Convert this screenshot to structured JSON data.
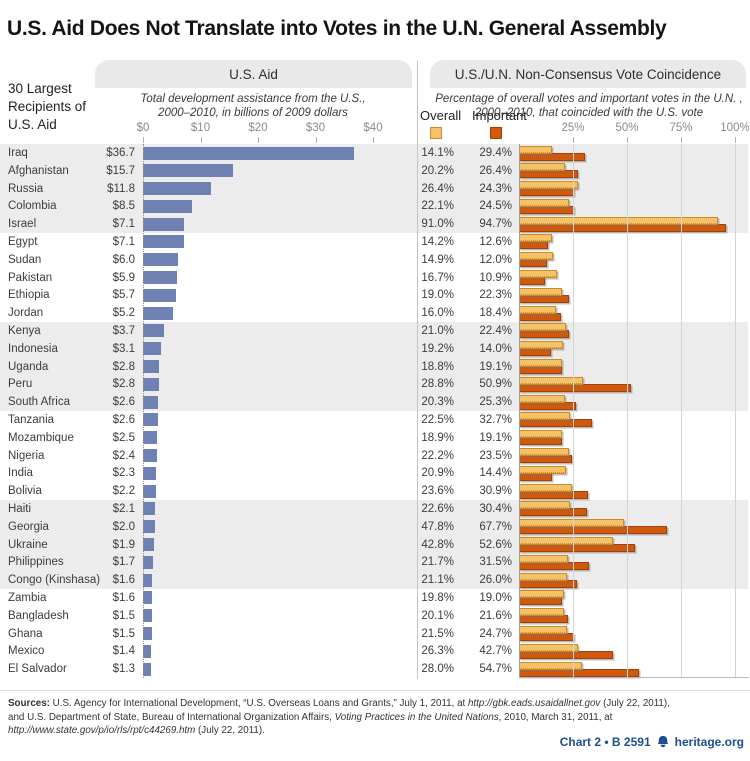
{
  "title": "U.S. Aid Does Not Translate into Votes in the U.N. General Assembly",
  "row_header": "30 Largest Recipients of U.S. Aid",
  "panels": {
    "aid": {
      "tab": "U.S. Aid",
      "subtitle": "Total development assistance from the U.S., 2000–2010, in billions of 2009 dollars"
    },
    "votes": {
      "tab": "U.S./U.N. Non-Consensus Vote Coincidence",
      "subtitle": "Percentage of overall votes and important votes in the U.N. , 2000–2010, that coincided with the U.S. vote"
    }
  },
  "legend": {
    "overall_label": "Overall",
    "important_label": "Important"
  },
  "chart_data": [
    {
      "type": "bar",
      "title": "U.S. Aid",
      "subtitle": "Total development assistance from the U.S., 2000–2010, in billions of 2009 dollars",
      "orientation": "horizontal",
      "unit": "billions of 2009 USD",
      "xlim": [
        0,
        40
      ],
      "grid": false,
      "x_ticks": [
        {
          "label": "$0",
          "value": 0
        },
        {
          "label": "$10",
          "value": 10
        },
        {
          "label": "$20",
          "value": 20
        },
        {
          "label": "$30",
          "value": 30
        },
        {
          "label": "$40",
          "value": 40
        }
      ],
      "categories": [
        "Iraq",
        "Afghanistan",
        "Russia",
        "Colombia",
        "Israel",
        "Egypt",
        "Sudan",
        "Pakistan",
        "Ethiopia",
        "Jordan",
        "Kenya",
        "Indonesia",
        "Uganda",
        "Peru",
        "South Africa",
        "Tanzania",
        "Mozambique",
        "Nigeria",
        "India",
        "Bolivia",
        "Haiti",
        "Georgia",
        "Ukraine",
        "Philippines",
        "Congo (Kinshasa)",
        "Zambia",
        "Bangladesh",
        "Ghana",
        "Mexico",
        "El Salvador"
      ],
      "values": [
        36.7,
        15.7,
        11.8,
        8.5,
        7.1,
        7.1,
        6.0,
        5.9,
        5.7,
        5.2,
        3.7,
        3.1,
        2.8,
        2.8,
        2.6,
        2.6,
        2.5,
        2.4,
        2.3,
        2.2,
        2.1,
        2.0,
        1.9,
        1.7,
        1.6,
        1.6,
        1.5,
        1.5,
        1.4,
        1.3
      ],
      "value_labels": [
        "$36.7",
        "$15.7",
        "$11.8",
        "$8.5",
        "$7.1",
        "$7.1",
        "$6.0",
        "$5.9",
        "$5.7",
        "$5.2",
        "$3.7",
        "$3.1",
        "$2.8",
        "$2.8",
        "$2.6",
        "$2.6",
        "$2.5",
        "$2.4",
        "$2.3",
        "$2.2",
        "$2.1",
        "$2.0",
        "$1.9",
        "$1.7",
        "$1.6",
        "$1.6",
        "$1.5",
        "$1.5",
        "$1.4",
        "$1.3"
      ]
    },
    {
      "type": "bar",
      "title": "U.S./U.N. Non-Consensus Vote Coincidence",
      "subtitle": "Percentage of overall votes and important votes in the U.N. , 2000–2010, that coincided with the U.S. vote",
      "orientation": "horizontal",
      "unit": "percent",
      "xlim": [
        0,
        100
      ],
      "grid": true,
      "legend_position": "top-left",
      "x_ticks": [
        {
          "label": "25%",
          "value": 25
        },
        {
          "label": "50%",
          "value": 50
        },
        {
          "label": "75%",
          "value": 75
        },
        {
          "label": "100%",
          "value": 100
        }
      ],
      "categories": [
        "Iraq",
        "Afghanistan",
        "Russia",
        "Colombia",
        "Israel",
        "Egypt",
        "Sudan",
        "Pakistan",
        "Ethiopia",
        "Jordan",
        "Kenya",
        "Indonesia",
        "Uganda",
        "Peru",
        "South Africa",
        "Tanzania",
        "Mozambique",
        "Nigeria",
        "India",
        "Bolivia",
        "Haiti",
        "Georgia",
        "Ukraine",
        "Philippines",
        "Congo (Kinshasa)",
        "Zambia",
        "Bangladesh",
        "Ghana",
        "Mexico",
        "El Salvador"
      ],
      "series": [
        {
          "name": "Overall",
          "values": [
            14.1,
            20.2,
            26.4,
            22.1,
            91.0,
            14.2,
            14.9,
            16.7,
            19.0,
            16.0,
            21.0,
            19.2,
            18.8,
            28.8,
            20.3,
            22.5,
            18.9,
            22.2,
            20.9,
            23.6,
            22.6,
            47.8,
            42.8,
            21.7,
            21.1,
            19.8,
            20.1,
            21.5,
            26.3,
            28.0
          ]
        },
        {
          "name": "Important",
          "values": [
            29.4,
            26.4,
            24.3,
            24.5,
            94.7,
            12.6,
            12.0,
            10.9,
            22.3,
            18.4,
            22.4,
            14.0,
            19.1,
            50.9,
            25.3,
            32.7,
            19.1,
            23.5,
            14.4,
            30.9,
            30.4,
            67.7,
            52.6,
            31.5,
            26.0,
            19.0,
            21.6,
            24.7,
            42.7,
            54.7
          ]
        }
      ]
    }
  ],
  "colors": {
    "band": "#ECECEC",
    "aid_bar": "#6E81B2",
    "overall_fill": "#F4C268",
    "overall_border": "#CF8A28",
    "important_fill": "#D1590E",
    "important_border": "#A04208",
    "footer_blue": "#1D4E8F"
  },
  "footer": {
    "sources_label": "Sources:",
    "line1_a": " U.S. Agency for International Development, “U.S. Overseas Loans and Grants,” July 1, 2011, at ",
    "line1_url": "http://gbk.eads.usaidallnet.gov",
    "line1_b": " (July 22, 2011),",
    "line2_a": "and U.S. Department of State, Bureau of International Organization Affairs, ",
    "line2_title": "Voting Practices in the United Nations",
    "line2_b": ", 2010, March 31, 2011, at",
    "line3_url": "http://www.state.gov/p/io/rls/rpt/c44269.htm",
    "line3_b": " (July 22, 2011).",
    "chart_ref": "Chart 2 • B 2591",
    "site": "heritage.org"
  }
}
